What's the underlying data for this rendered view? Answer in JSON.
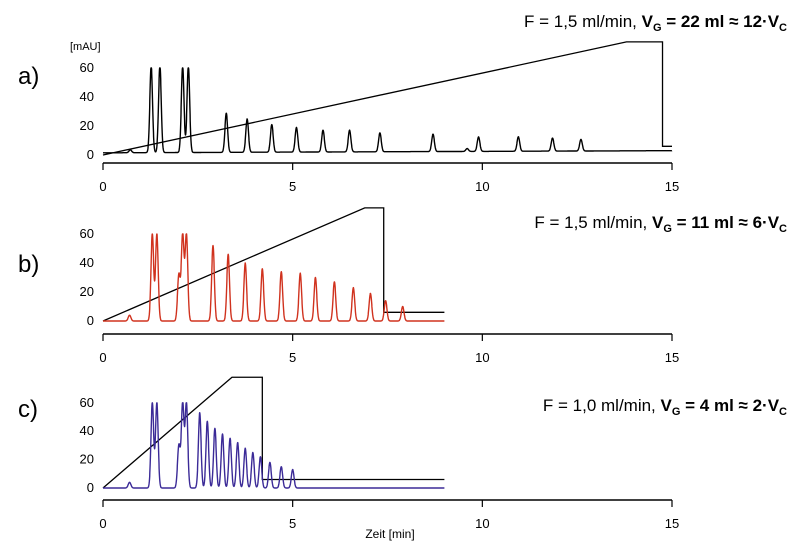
{
  "chart_data": [
    {
      "id": "a",
      "type": "line",
      "panel_label": "a)",
      "y_unit": "[mAU]",
      "condition": {
        "prefix": "F = 1,5 ml/min, ",
        "bold_main": "V",
        "bold_sub_g": "G",
        "bold_mid": " = 22 ml ≈ 12·V",
        "bold_sub_c": "C"
      },
      "xlim": [
        0,
        15
      ],
      "ylim": [
        0,
        60
      ],
      "xticks": [
        0,
        5,
        10,
        15
      ],
      "yticks": [
        0,
        20,
        40,
        60
      ],
      "trace_color": "#000000",
      "baseline_start": 1.5,
      "baseline_end": 3,
      "peaks": [
        {
          "t": 0.72,
          "h": 2
        },
        {
          "t": 1.27,
          "h": 60
        },
        {
          "t": 1.5,
          "h": 60
        },
        {
          "t": 2.1,
          "h": 60
        },
        {
          "t": 2.25,
          "h": 60
        },
        {
          "t": 3.25,
          "h": 27
        },
        {
          "t": 3.8,
          "h": 23
        },
        {
          "t": 4.45,
          "h": 19
        },
        {
          "t": 5.1,
          "h": 17
        },
        {
          "t": 5.8,
          "h": 15
        },
        {
          "t": 6.5,
          "h": 15
        },
        {
          "t": 7.3,
          "h": 13
        },
        {
          "t": 8.7,
          "h": 12
        },
        {
          "t": 9.6,
          "h": 2
        },
        {
          "t": 9.9,
          "h": 10
        },
        {
          "t": 10.95,
          "h": 10
        },
        {
          "t": 11.85,
          "h": 9
        },
        {
          "t": 12.6,
          "h": 8
        }
      ],
      "trace_end": 15,
      "gradient": {
        "t_start": 0,
        "t_ramp_end": 13.8,
        "t_drop": 14.75,
        "t_end": 15,
        "low": 0,
        "high": 78,
        "tail": 6
      }
    },
    {
      "id": "b",
      "type": "line",
      "panel_label": "b)",
      "y_unit": "",
      "condition": {
        "prefix": "F = 1,5 ml/min, ",
        "bold_main": "V",
        "bold_sub_g": "G",
        "bold_mid": " = 11 ml ≈ 6·V",
        "bold_sub_c": "C"
      },
      "xlim": [
        0,
        15
      ],
      "ylim": [
        0,
        60
      ],
      "xticks": [
        0,
        5,
        10,
        15
      ],
      "yticks": [
        0,
        20,
        40,
        60
      ],
      "trace_color": "#d0321e",
      "baseline_start": 0,
      "baseline_end": 0,
      "peaks": [
        {
          "t": 0.7,
          "h": 4
        },
        {
          "t": 1.3,
          "h": 60
        },
        {
          "t": 1.42,
          "h": 60
        },
        {
          "t": 2.0,
          "h": 32
        },
        {
          "t": 2.1,
          "h": 60
        },
        {
          "t": 2.2,
          "h": 60
        },
        {
          "t": 2.9,
          "h": 52
        },
        {
          "t": 3.3,
          "h": 46
        },
        {
          "t": 3.75,
          "h": 40
        },
        {
          "t": 4.2,
          "h": 36
        },
        {
          "t": 4.7,
          "h": 34
        },
        {
          "t": 5.2,
          "h": 33
        },
        {
          "t": 5.6,
          "h": 30
        },
        {
          "t": 6.1,
          "h": 27
        },
        {
          "t": 6.6,
          "h": 23
        },
        {
          "t": 7.05,
          "h": 19
        },
        {
          "t": 7.45,
          "h": 14
        },
        {
          "t": 7.9,
          "h": 10
        }
      ],
      "trace_end": 9,
      "gradient": {
        "t_start": 0,
        "t_ramp_end": 6.9,
        "t_drop": 7.4,
        "t_end": 9,
        "low": 0,
        "high": 78,
        "tail": 6
      }
    },
    {
      "id": "c",
      "type": "line",
      "panel_label": "c)",
      "y_unit": "",
      "condition": {
        "prefix": "F = 1,0 ml/min, ",
        "bold_main": "V",
        "bold_sub_g": "G",
        "bold_mid": " = 4 ml ≈ 2·V",
        "bold_sub_c": "C"
      },
      "xlim": [
        0,
        15
      ],
      "ylim": [
        0,
        60
      ],
      "xticks": [
        0,
        5,
        10,
        15
      ],
      "yticks": [
        0,
        20,
        40,
        60
      ],
      "xlabel": "Zeit [min]",
      "trace_color": "#3b2a97",
      "baseline_start": 0,
      "baseline_end": 0,
      "peaks": [
        {
          "t": 0.7,
          "h": 4
        },
        {
          "t": 1.3,
          "h": 60
        },
        {
          "t": 1.42,
          "h": 60
        },
        {
          "t": 2.0,
          "h": 30
        },
        {
          "t": 2.1,
          "h": 60
        },
        {
          "t": 2.2,
          "h": 60
        },
        {
          "t": 2.55,
          "h": 53
        },
        {
          "t": 2.75,
          "h": 47
        },
        {
          "t": 2.95,
          "h": 42
        },
        {
          "t": 3.15,
          "h": 38
        },
        {
          "t": 3.35,
          "h": 35
        },
        {
          "t": 3.55,
          "h": 32
        },
        {
          "t": 3.75,
          "h": 28
        },
        {
          "t": 3.95,
          "h": 25
        },
        {
          "t": 4.15,
          "h": 22
        },
        {
          "t": 4.4,
          "h": 18
        },
        {
          "t": 4.7,
          "h": 15
        },
        {
          "t": 5.0,
          "h": 13
        }
      ],
      "trace_end": 9,
      "gradient": {
        "t_start": 0,
        "t_ramp_end": 3.4,
        "t_drop": 4.2,
        "t_end": 9,
        "low": 0,
        "high": 78,
        "tail": 6
      }
    }
  ]
}
